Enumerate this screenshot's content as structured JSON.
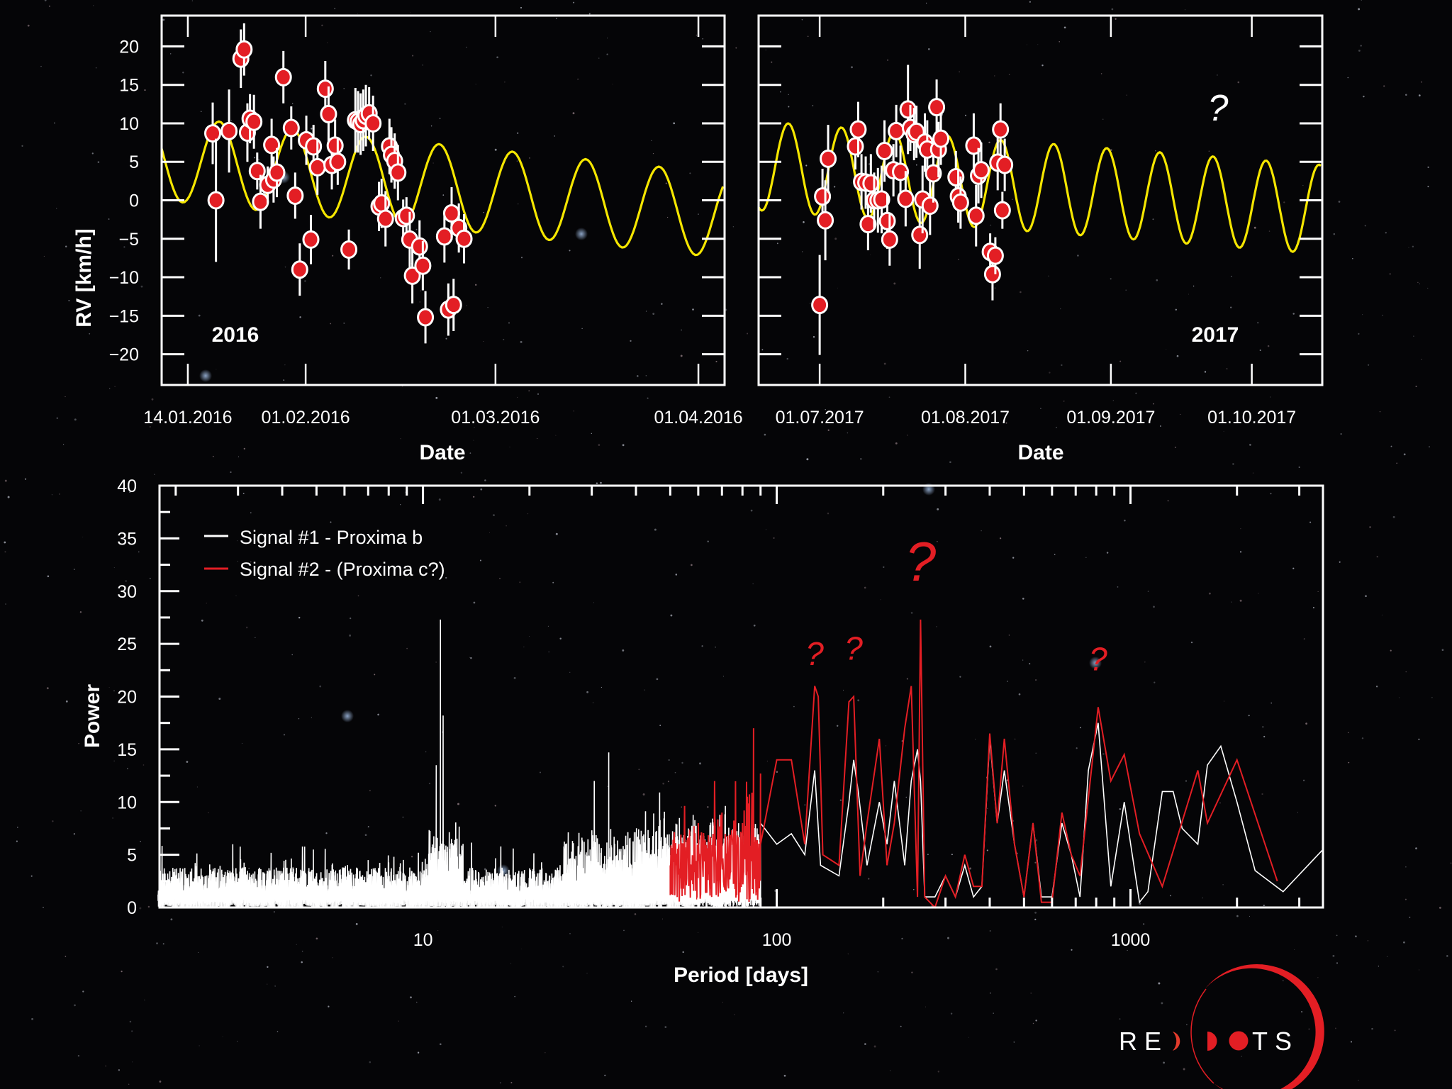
{
  "colors": {
    "background": "#050507",
    "axes": "#ffffff",
    "model_curve": "#f5e600",
    "points": "#e31e24",
    "signal1": "#ffffff",
    "signal2": "#e31e24",
    "annotation": "#e31e24"
  },
  "chart_data": [
    {
      "type": "scatter",
      "panel": "2016",
      "title": "",
      "panel_label": "2016",
      "xlabel": "Date",
      "ylabel": "RV [km/h]",
      "ylim": [
        -24,
        24
      ],
      "xlim_days": [
        -4,
        82
      ],
      "x_tick_labels": [
        "14.01.2016",
        "01.02.2016",
        "01.03.2016",
        "01.04.2016"
      ],
      "x_tick_days": [
        0,
        18,
        47,
        78
      ],
      "y_ticks": [
        20,
        15,
        10,
        5,
        0,
        -5,
        -10,
        -15,
        -20
      ],
      "y_tick_labels": [
        "20",
        "15",
        "10",
        "5",
        "0",
        "−5",
        "−10",
        "−15",
        "−20"
      ],
      "model": {
        "amplitude": 5.5,
        "period_days": 11.2,
        "phase_days": 2.0,
        "offset_start": 5.5,
        "offset_end": -2.0
      },
      "points": [
        {
          "x": 3.8,
          "y": 8.7,
          "err": 4.0
        },
        {
          "x": 4.3,
          "y": 0.0,
          "err": 8.0
        },
        {
          "x": 6.3,
          "y": 9.0,
          "err": 5.4
        },
        {
          "x": 8.1,
          "y": 18.4,
          "err": 3.8
        },
        {
          "x": 8.6,
          "y": 19.6,
          "err": 3.4
        },
        {
          "x": 9.1,
          "y": 8.8,
          "err": 3.8
        },
        {
          "x": 9.5,
          "y": 10.6,
          "err": 3.2
        },
        {
          "x": 10.1,
          "y": 10.2,
          "err": 3.5
        },
        {
          "x": 10.6,
          "y": 3.8,
          "err": 2.4
        },
        {
          "x": 11.1,
          "y": -0.2,
          "err": 3.5
        },
        {
          "x": 12.2,
          "y": 2.0,
          "err": 2.4
        },
        {
          "x": 12.8,
          "y": 7.2,
          "err": 3.4
        },
        {
          "x": 13.1,
          "y": 2.7,
          "err": 3.0
        },
        {
          "x": 13.6,
          "y": 3.6,
          "err": 3.2
        },
        {
          "x": 14.6,
          "y": 16.0,
          "err": 3.4
        },
        {
          "x": 15.8,
          "y": 9.4,
          "err": 2.8
        },
        {
          "x": 16.4,
          "y": 0.6,
          "err": 3.0
        },
        {
          "x": 17.1,
          "y": -9.0,
          "err": 3.4
        },
        {
          "x": 18.1,
          "y": 7.8,
          "err": 3.2
        },
        {
          "x": 18.8,
          "y": -5.1,
          "err": 3.2
        },
        {
          "x": 19.2,
          "y": 7.0,
          "err": 2.8
        },
        {
          "x": 19.8,
          "y": 4.3,
          "err": 3.6
        },
        {
          "x": 21.0,
          "y": 14.5,
          "err": 3.6
        },
        {
          "x": 21.5,
          "y": 11.2,
          "err": 3.6
        },
        {
          "x": 22.0,
          "y": 4.6,
          "err": 3.2
        },
        {
          "x": 22.5,
          "y": 7.1,
          "err": 3.4
        },
        {
          "x": 22.9,
          "y": 5.0,
          "err": 3.0
        },
        {
          "x": 24.6,
          "y": -6.4,
          "err": 2.6
        },
        {
          "x": 25.6,
          "y": 10.4,
          "err": 4.2
        },
        {
          "x": 26.0,
          "y": 10.2,
          "err": 4.0
        },
        {
          "x": 26.4,
          "y": 9.9,
          "err": 4.0
        },
        {
          "x": 26.8,
          "y": 10.4,
          "err": 4.0
        },
        {
          "x": 27.2,
          "y": 11.0,
          "err": 4.0
        },
        {
          "x": 27.7,
          "y": 11.3,
          "err": 3.4
        },
        {
          "x": 28.3,
          "y": 10.0,
          "err": 3.6
        },
        {
          "x": 29.2,
          "y": -0.8,
          "err": 3.2
        },
        {
          "x": 29.6,
          "y": -0.4,
          "err": 3.2
        },
        {
          "x": 30.2,
          "y": -2.4,
          "err": 3.6
        },
        {
          "x": 30.8,
          "y": 7.0,
          "err": 3.6
        },
        {
          "x": 31.1,
          "y": 5.9,
          "err": 3.6
        },
        {
          "x": 31.6,
          "y": 5.1,
          "err": 3.6
        },
        {
          "x": 32.1,
          "y": 3.6,
          "err": 3.6
        },
        {
          "x": 32.9,
          "y": -2.3,
          "err": 2.4
        },
        {
          "x": 33.4,
          "y": -2.0,
          "err": 2.4
        },
        {
          "x": 33.9,
          "y": -5.1,
          "err": 3.6
        },
        {
          "x": 34.3,
          "y": -9.8,
          "err": 3.6
        },
        {
          "x": 35.4,
          "y": -6.0,
          "err": 3.4
        },
        {
          "x": 35.9,
          "y": -8.5,
          "err": 3.2
        },
        {
          "x": 36.3,
          "y": -15.2,
          "err": 3.4
        },
        {
          "x": 39.2,
          "y": -4.7,
          "err": 3.4
        },
        {
          "x": 39.8,
          "y": -14.2,
          "err": 3.4
        },
        {
          "x": 40.3,
          "y": -1.7,
          "err": 3.4
        },
        {
          "x": 40.6,
          "y": -13.6,
          "err": 3.4
        },
        {
          "x": 41.4,
          "y": -3.6,
          "err": 3.2
        },
        {
          "x": 42.2,
          "y": -5.0,
          "err": 3.2
        }
      ]
    },
    {
      "type": "scatter",
      "panel": "2017",
      "title": "",
      "panel_label": "2017",
      "annotation": "?",
      "xlabel": "Date",
      "ylabel": "",
      "ylim": [
        -24,
        24
      ],
      "xlim_days": [
        -13,
        107
      ],
      "x_tick_labels": [
        "01.07.2017",
        "01.08.2017",
        "01.09.2017",
        "01.10.2017"
      ],
      "x_tick_days": [
        0,
        31,
        62,
        92
      ],
      "y_ticks": [
        20,
        15,
        10,
        5,
        0,
        -5,
        -10,
        -15,
        -20
      ],
      "model": {
        "amplitude": 5.8,
        "period_days": 11.3,
        "phase_days": -9.5,
        "offset_start": 4.5,
        "offset_end": -1.2
      },
      "points": [
        {
          "x": 0.0,
          "y": -13.6,
          "err": 6.5
        },
        {
          "x": 0.6,
          "y": 0.5,
          "err": 3.6
        },
        {
          "x": 1.2,
          "y": -2.6,
          "err": 5.2
        },
        {
          "x": 1.8,
          "y": 5.4,
          "err": 4.4
        },
        {
          "x": 7.6,
          "y": 7.0,
          "err": 3.0
        },
        {
          "x": 8.2,
          "y": 9.2,
          "err": 3.6
        },
        {
          "x": 8.9,
          "y": 2.4,
          "err": 3.6
        },
        {
          "x": 9.8,
          "y": 2.3,
          "err": 3.4
        },
        {
          "x": 10.3,
          "y": -3.1,
          "err": 3.4
        },
        {
          "x": 10.9,
          "y": 2.2,
          "err": 3.8
        },
        {
          "x": 11.6,
          "y": 0.0,
          "err": 3.6
        },
        {
          "x": 12.4,
          "y": 0.0,
          "err": 4.2
        },
        {
          "x": 13.2,
          "y": 0.1,
          "err": 4.4
        },
        {
          "x": 13.8,
          "y": 6.4,
          "err": 4.0
        },
        {
          "x": 14.4,
          "y": -2.7,
          "err": 3.6
        },
        {
          "x": 14.9,
          "y": -5.1,
          "err": 3.4
        },
        {
          "x": 15.7,
          "y": 3.9,
          "err": 3.4
        },
        {
          "x": 16.3,
          "y": 9.0,
          "err": 3.4
        },
        {
          "x": 17.2,
          "y": 3.7,
          "err": 3.4
        },
        {
          "x": 18.3,
          "y": 0.2,
          "err": 3.6
        },
        {
          "x": 18.8,
          "y": 11.8,
          "err": 5.8
        },
        {
          "x": 19.3,
          "y": 9.4,
          "err": 3.0
        },
        {
          "x": 20.1,
          "y": 8.6,
          "err": 3.4
        },
        {
          "x": 20.6,
          "y": 8.9,
          "err": 3.4
        },
        {
          "x": 21.3,
          "y": -4.5,
          "err": 4.4
        },
        {
          "x": 21.9,
          "y": 0.1,
          "err": 4.4
        },
        {
          "x": 22.4,
          "y": 7.5,
          "err": 3.8
        },
        {
          "x": 22.9,
          "y": 6.6,
          "err": 3.8
        },
        {
          "x": 23.5,
          "y": -0.7,
          "err": 3.8
        },
        {
          "x": 24.2,
          "y": 3.5,
          "err": 3.8
        },
        {
          "x": 24.9,
          "y": 12.1,
          "err": 3.6
        },
        {
          "x": 25.3,
          "y": 6.6,
          "err": 3.6
        },
        {
          "x": 25.8,
          "y": 8.0,
          "err": 3.4
        },
        {
          "x": 29.0,
          "y": 3.0,
          "err": 3.4
        },
        {
          "x": 29.5,
          "y": 0.5,
          "err": 3.4
        },
        {
          "x": 30.0,
          "y": -0.3,
          "err": 3.4
        },
        {
          "x": 32.8,
          "y": 7.1,
          "err": 4.2
        },
        {
          "x": 33.3,
          "y": -2.0,
          "err": 4.0
        },
        {
          "x": 33.8,
          "y": 3.2,
          "err": 3.6
        },
        {
          "x": 34.4,
          "y": 3.9,
          "err": 3.6
        },
        {
          "x": 36.3,
          "y": -6.7,
          "err": 2.4
        },
        {
          "x": 36.8,
          "y": -9.6,
          "err": 3.4
        },
        {
          "x": 37.4,
          "y": -7.2,
          "err": 2.4
        },
        {
          "x": 37.9,
          "y": 4.9,
          "err": 3.6
        },
        {
          "x": 38.5,
          "y": 9.2,
          "err": 3.4
        },
        {
          "x": 38.9,
          "y": -1.3,
          "err": 2.4
        },
        {
          "x": 39.4,
          "y": 4.6,
          "err": 3.4
        }
      ]
    },
    {
      "type": "line",
      "title": "",
      "xlabel": "Period [days]",
      "ylabel": "Power",
      "xscale": "log",
      "xlim": [
        1.8,
        3500
      ],
      "ylim": [
        0,
        40
      ],
      "x_tick_labels": [
        "10",
        "100",
        "1000"
      ],
      "x_ticks": [
        10,
        100,
        1000
      ],
      "y_ticks": [
        0,
        5,
        10,
        15,
        20,
        25,
        30,
        35,
        40
      ],
      "y_tick_labels": [
        "0",
        "5",
        "10",
        "15",
        "20",
        "25",
        "30",
        "35",
        "40"
      ],
      "legend_position": "top-left",
      "legend": [
        "Signal #1 - Proxima b",
        "Signal #2 - (Proxima c?)"
      ],
      "annotations": [
        {
          "text": "?",
          "x": 128,
          "y": 23
        },
        {
          "text": "?",
          "x": 165,
          "y": 23.5
        },
        {
          "text": "?",
          "x": 255,
          "y": 31
        },
        {
          "text": "?",
          "x": 810,
          "y": 22.5
        }
      ],
      "series": [
        {
          "name": "Signal #1 - Proxima b",
          "noise_region": [
            1.8,
            90
          ],
          "peaks": [
            {
              "x": 2.9,
              "y": 6.0
            },
            {
              "x": 4.9,
              "y": 5.5
            },
            {
              "x": 7.0,
              "y": 4.5
            },
            {
              "x": 11.2,
              "y": 27.3
            },
            {
              "x": 11.4,
              "y": 18.2
            },
            {
              "x": 10.9,
              "y": 13.5
            },
            {
              "x": 33.5,
              "y": 14.7
            },
            {
              "x": 30.5,
              "y": 12.0
            }
          ],
          "smooth": [
            [
              90,
              8
            ],
            [
              100,
              6
            ],
            [
              110,
              7
            ],
            [
              120,
              5
            ],
            [
              128,
              13
            ],
            [
              133,
              4
            ],
            [
              150,
              3
            ],
            [
              160,
              10
            ],
            [
              165,
              14
            ],
            [
              170,
              11
            ],
            [
              180,
              4
            ],
            [
              195,
              10
            ],
            [
              205,
              6
            ],
            [
              215,
              12
            ],
            [
              230,
              4
            ],
            [
              240,
              12
            ],
            [
              250,
              15
            ],
            [
              255,
              12
            ],
            [
              262,
              1
            ],
            [
              280,
              1
            ],
            [
              300,
              3
            ],
            [
              320,
              1
            ],
            [
              340,
              4
            ],
            [
              360,
              1
            ],
            [
              380,
              2
            ],
            [
              400,
              16
            ],
            [
              420,
              8
            ],
            [
              440,
              13
            ],
            [
              470,
              6
            ],
            [
              500,
              1
            ],
            [
              530,
              8
            ],
            [
              560,
              1
            ],
            [
              600,
              1
            ],
            [
              640,
              8
            ],
            [
              680,
              5
            ],
            [
              720,
              1
            ],
            [
              760,
              13
            ],
            [
              810,
              17.5
            ],
            [
              880,
              2
            ],
            [
              960,
              10
            ],
            [
              1060,
              0.5
            ],
            [
              1120,
              1.5
            ],
            [
              1230,
              11
            ],
            [
              1320,
              11
            ],
            [
              1400,
              7.5
            ],
            [
              1550,
              6
            ],
            [
              1650,
              13.5
            ],
            [
              1800,
              15.3
            ],
            [
              2000,
              10
            ],
            [
              2250,
              3.5
            ],
            [
              2700,
              1.5
            ],
            [
              3500,
              5.5
            ]
          ]
        },
        {
          "name": "Signal #2 - (Proxima c?)",
          "noise_region": [
            50,
            90
          ],
          "smooth": [
            [
              50,
              4
            ],
            [
              60,
              8
            ],
            [
              70,
              9
            ],
            [
              80,
              8
            ],
            [
              86,
              17
            ],
            [
              90,
              6
            ],
            [
              100,
              14
            ],
            [
              110,
              14
            ],
            [
              120,
              6
            ],
            [
              128,
              21
            ],
            [
              131,
              20
            ],
            [
              135,
              5
            ],
            [
              150,
              4
            ],
            [
              160,
              19.5
            ],
            [
              165,
              20
            ],
            [
              172,
              3
            ],
            [
              180,
              8
            ],
            [
              195,
              16
            ],
            [
              205,
              4
            ],
            [
              215,
              8
            ],
            [
              230,
              17
            ],
            [
              240,
              21
            ],
            [
              250,
              1
            ],
            [
              255,
              27.3
            ],
            [
              262,
              1
            ],
            [
              280,
              0
            ],
            [
              300,
              3
            ],
            [
              320,
              1
            ],
            [
              340,
              5
            ],
            [
              360,
              2
            ],
            [
              380,
              2
            ],
            [
              400,
              16.5
            ],
            [
              420,
              8
            ],
            [
              440,
              16
            ],
            [
              470,
              6
            ],
            [
              500,
              1
            ],
            [
              530,
              8
            ],
            [
              560,
              0.5
            ],
            [
              600,
              0.5
            ],
            [
              640,
              9
            ],
            [
              680,
              5
            ],
            [
              720,
              3
            ],
            [
              810,
              19
            ],
            [
              880,
              12
            ],
            [
              960,
              14.5
            ],
            [
              1060,
              7
            ],
            [
              1230,
              2
            ],
            [
              1550,
              13
            ],
            [
              1650,
              8
            ],
            [
              2000,
              14
            ],
            [
              2600,
              2.5
            ]
          ]
        }
      ]
    }
  ],
  "logo": {
    "text": "REDDOTS",
    "letters_left": "RE",
    "letters_right": "TS"
  }
}
